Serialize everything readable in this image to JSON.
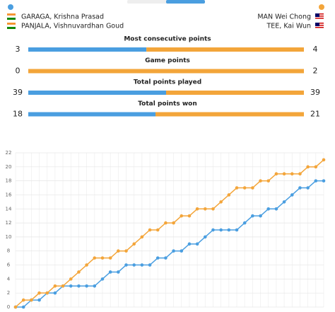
{
  "header": {
    "team1": {
      "players": [
        "GARAGA, Krishna Prasad",
        "PANJALA, Vishnuvardhan Goud"
      ],
      "color": "#4a9ee0"
    },
    "team2": {
      "players": [
        "MAN Wei Chong",
        "TEE, Kai Wun"
      ],
      "color": "#f3a53a"
    }
  },
  "stats": [
    {
      "label": "Most consecutive points",
      "values": [
        3,
        4
      ]
    },
    {
      "label": "Game points",
      "values": [
        0,
        2
      ]
    },
    {
      "label": "Total points played",
      "values": [
        39,
        39
      ]
    },
    {
      "label": "Total points won",
      "values": [
        18,
        21
      ]
    }
  ],
  "chart_data": {
    "type": "line",
    "series": [
      {
        "color": "#4a9ee0",
        "values": [
          0,
          0,
          1,
          1,
          2,
          2,
          3,
          3,
          3,
          3,
          3,
          4,
          5,
          5,
          6,
          6,
          6,
          6,
          7,
          7,
          8,
          8,
          9,
          9,
          10,
          11,
          11,
          11,
          11,
          12,
          13,
          13,
          14,
          14,
          15,
          16,
          17,
          17,
          18,
          18
        ]
      },
      {
        "color": "#f3a53a",
        "values": [
          0,
          1,
          1,
          2,
          2,
          3,
          3,
          4,
          5,
          6,
          7,
          7,
          7,
          8,
          8,
          9,
          10,
          11,
          11,
          12,
          12,
          13,
          13,
          14,
          14,
          14,
          15,
          16,
          17,
          17,
          17,
          18,
          18,
          19,
          19,
          19,
          19,
          20,
          20,
          21
        ]
      }
    ],
    "ylim": [
      0,
      22
    ],
    "yticks": [
      0,
      2,
      4,
      6,
      8,
      10,
      12,
      14,
      16,
      18,
      20,
      22
    ],
    "grid": true
  }
}
